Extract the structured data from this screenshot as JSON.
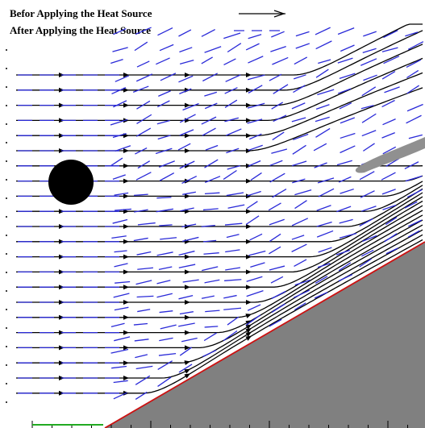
{
  "legend": {
    "before_label": "Befor Applying the Heat Source",
    "after_label": "After Applying the Heat Source",
    "before_color": "#000000",
    "after_color": "#2a2ad8"
  },
  "colors": {
    "streamline_before": "#000000",
    "streamline_after": "#2a2ad8",
    "wedge_fill": "#808080",
    "wedge_edge": "#cc1111",
    "heat_source": "#000000",
    "heated_wake": "#909090",
    "inlet_marker": "#22aa22"
  },
  "icons": {
    "heat_source": "filled-circle",
    "flow_arrow": "arrowhead"
  }
}
